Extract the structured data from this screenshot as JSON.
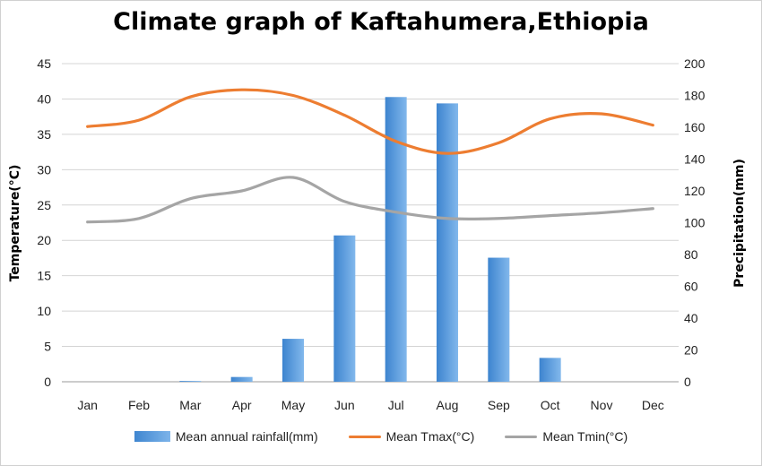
{
  "chart_data": {
    "type": "bar+line",
    "title": "Climate graph of Kaftahumera,Ethiopia",
    "categories": [
      "Jan",
      "Feb",
      "Mar",
      "Apr",
      "May",
      "Jun",
      "Jul",
      "Aug",
      "Sep",
      "Oct",
      "Nov",
      "Dec"
    ],
    "y_left": {
      "label": "Temperature(°C)",
      "min": 0,
      "max": 45,
      "step": 5
    },
    "y_right": {
      "label": "Precipitation(mm)",
      "min": 0,
      "max": 200,
      "step": 20
    },
    "grid": true,
    "legend_position": "bottom",
    "bar_series": {
      "name": "Mean annual rainfall(mm)",
      "axis": "right",
      "color": "#4a90d9",
      "values": [
        0,
        0,
        0.5,
        3,
        27,
        92,
        179,
        175,
        78,
        15,
        0,
        0
      ]
    },
    "line_series": [
      {
        "name": "Mean Tmax(°C)",
        "axis": "left",
        "color": "#ed7d31",
        "values": [
          36.1,
          37.0,
          40.3,
          41.3,
          40.5,
          37.7,
          34.0,
          32.3,
          33.8,
          37.2,
          37.9,
          36.3
        ]
      },
      {
        "name": "Mean Tmin(°C)",
        "axis": "left",
        "color": "#a5a5a5",
        "values": [
          22.6,
          23.1,
          25.9,
          27.0,
          28.9,
          25.5,
          24.0,
          23.1,
          23.1,
          23.5,
          23.9,
          24.5
        ]
      }
    ]
  }
}
